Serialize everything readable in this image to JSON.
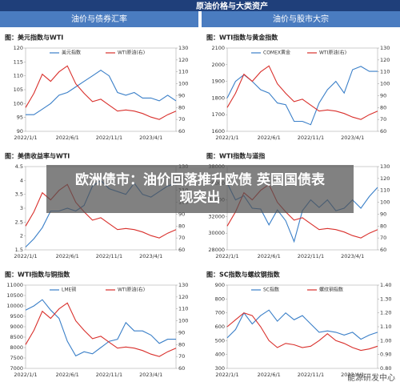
{
  "header": {
    "title": "原油价格与大类资产",
    "tabs": [
      "油价与债券汇率",
      "油价与股市大宗"
    ]
  },
  "overlay_title": "欧洲债市：油价回落推升欧债 英国国债表现突出",
  "watermark": "能源研发中心",
  "chart_data": [
    {
      "type": "line",
      "title": "图：美元指数与WTI",
      "categories": [
        "2022/1/1",
        null,
        null,
        null,
        null,
        "2022/6/1",
        null,
        null,
        null,
        null,
        "2022/11/1",
        null,
        null,
        null,
        null,
        "2023/4/1",
        null,
        null,
        null
      ],
      "series": [
        {
          "name": "美元指数",
          "color": "#3a7fc8",
          "values": [
            96,
            96,
            98,
            100,
            103,
            104,
            106,
            108,
            110,
            112,
            110,
            104,
            103,
            104,
            102,
            102,
            101,
            103,
            101
          ]
        },
        {
          "name": "WTI原油(右)",
          "color": "#d9302c",
          "axis": "y2",
          "values": [
            80,
            92,
            108,
            102,
            110,
            115,
            100,
            92,
            85,
            87,
            82,
            77,
            78,
            77,
            75,
            72,
            70,
            74,
            77
          ]
        }
      ],
      "ylim": [
        90,
        120
      ],
      "yticks": [
        90,
        95,
        100,
        105,
        110,
        115,
        120
      ],
      "y2lim": [
        60,
        130
      ],
      "y2ticks": [
        60,
        70,
        80,
        90,
        100,
        110,
        120,
        130
      ]
    },
    {
      "type": "line",
      "title": "图：WTI指数与黄金指数",
      "categories": [
        "2022/1/1",
        null,
        null,
        null,
        null,
        "2022/6/1",
        null,
        null,
        null,
        null,
        "2022/11/1",
        null,
        null,
        null,
        null,
        "2023/4/1",
        null,
        null,
        null
      ],
      "series": [
        {
          "name": "COMEX黄金",
          "color": "#3a7fc8",
          "values": [
            1800,
            1900,
            1940,
            1900,
            1850,
            1830,
            1770,
            1760,
            1660,
            1660,
            1640,
            1770,
            1850,
            1900,
            1830,
            1970,
            1990,
            1960,
            1960
          ]
        },
        {
          "name": "WTI原油(右)",
          "color": "#d9302c",
          "axis": "y2",
          "values": [
            80,
            92,
            108,
            102,
            110,
            115,
            100,
            92,
            85,
            87,
            82,
            77,
            78,
            77,
            75,
            72,
            70,
            74,
            77
          ]
        }
      ],
      "ylim": [
        1600,
        2100
      ],
      "yticks": [
        1600,
        1700,
        1800,
        1900,
        2000,
        2100
      ],
      "y2lim": [
        60,
        130
      ],
      "y2ticks": [
        60,
        70,
        80,
        90,
        100,
        110,
        120,
        130
      ]
    },
    {
      "type": "line",
      "title": "图：美债收益率与WTI",
      "categories": [
        "2022/1/1",
        null,
        null,
        null,
        null,
        "2022/6/1",
        null,
        null,
        null,
        null,
        "2022/11/1",
        null,
        null,
        null,
        null,
        "2023/4/1",
        null,
        null,
        null
      ],
      "series": [
        {
          "color": "#3a7fc8",
          "values": [
            1.6,
            1.9,
            2.3,
            2.9,
            2.9,
            3.0,
            2.9,
            3.1,
            3.8,
            4.0,
            3.7,
            3.6,
            3.5,
            3.9,
            3.5,
            3.4,
            3.6,
            3.8,
            3.9
          ]
        },
        {
          "color": "#d9302c",
          "axis": "y2",
          "values": [
            80,
            92,
            108,
            102,
            110,
            115,
            100,
            92,
            85,
            87,
            82,
            77,
            78,
            77,
            75,
            72,
            70,
            74,
            77
          ]
        }
      ],
      "ylim": [
        1.5,
        4.5
      ],
      "yticks": [
        1.5,
        2,
        2.5,
        3,
        3.5,
        4,
        4.5
      ],
      "y2lim": [
        60,
        130
      ],
      "y2ticks": [
        60,
        70,
        80,
        90,
        100,
        110,
        120,
        130
      ]
    },
    {
      "type": "line",
      "title": "图：WTI指数与道指",
      "categories": [
        "2022/1/1",
        null,
        null,
        null,
        null,
        "2022/6/1",
        null,
        null,
        null,
        null,
        "2022/11/1",
        null,
        null,
        null,
        null,
        "2023/4/1",
        null,
        null,
        null
      ],
      "series": [
        {
          "color": "#3a7fc8",
          "values": [
            36000,
            34000,
            34500,
            33000,
            32900,
            31000,
            32800,
            31500,
            29000,
            32700,
            34000,
            33100,
            34000,
            32700,
            33000,
            34000,
            33000,
            34400,
            35500
          ]
        },
        {
          "color": "#d9302c",
          "axis": "y2",
          "values": [
            80,
            92,
            108,
            102,
            110,
            115,
            100,
            92,
            85,
            87,
            82,
            77,
            78,
            77,
            75,
            72,
            70,
            74,
            77
          ]
        }
      ],
      "ylim": [
        28000,
        38000
      ],
      "yticks": [
        28000,
        30000,
        32000,
        34000,
        36000,
        38000
      ],
      "y2lim": [
        60,
        130
      ],
      "y2ticks": [
        60,
        70,
        80,
        90,
        100,
        110,
        120,
        130
      ]
    },
    {
      "type": "line",
      "title": "图：WTI指数与铜指数",
      "categories": [
        "2022/1/1",
        null,
        null,
        null,
        null,
        "2022/6/1",
        null,
        null,
        null,
        null,
        "2022/11/1",
        null,
        null,
        null,
        null,
        "2023/4/1",
        null,
        null,
        null
      ],
      "series": [
        {
          "name": "LME铜",
          "color": "#3a7fc8",
          "values": [
            9800,
            10000,
            10300,
            9800,
            9400,
            8300,
            7600,
            7800,
            7700,
            8000,
            8300,
            8400,
            9200,
            8800,
            8800,
            8600,
            8200,
            8400,
            8400
          ]
        },
        {
          "name": "WTI原油(右)",
          "color": "#d9302c",
          "axis": "y2",
          "values": [
            80,
            92,
            108,
            102,
            110,
            115,
            100,
            92,
            85,
            87,
            82,
            77,
            78,
            77,
            75,
            72,
            70,
            74,
            77
          ]
        }
      ],
      "ylim": [
        7000,
        11000
      ],
      "yticks": [
        7000,
        7500,
        8000,
        8500,
        9000,
        9500,
        10000,
        10500,
        11000
      ],
      "y2lim": [
        60,
        130
      ],
      "y2ticks": [
        60,
        70,
        80,
        90,
        100,
        110,
        120,
        130
      ]
    },
    {
      "type": "line",
      "title": "图：SC指数与螺纹钢指数",
      "categories": [
        "2022/1/1",
        null,
        null,
        null,
        null,
        "2022/6/1",
        null,
        null,
        null,
        null,
        "2022/11/1",
        null,
        null,
        null,
        null,
        "2023/4/1",
        null,
        null,
        null
      ],
      "series": [
        {
          "name": "SC指数",
          "color": "#3a7fc8",
          "values": [
            520,
            580,
            700,
            620,
            680,
            720,
            640,
            700,
            650,
            680,
            620,
            560,
            570,
            560,
            540,
            560,
            510,
            540,
            560
          ]
        },
        {
          "name": "螺纹钢指数",
          "color": "#d9302c",
          "axis": "y2",
          "values": [
            1.1,
            1.15,
            1.2,
            1.18,
            1.1,
            1.0,
            0.95,
            0.98,
            0.97,
            0.95,
            0.96,
            1.0,
            1.05,
            1.0,
            0.98,
            0.95,
            0.93,
            0.94,
            0.96
          ]
        }
      ],
      "ylim": [
        300,
        900
      ],
      "yticks": [
        300,
        400,
        500,
        600,
        700,
        800,
        900
      ],
      "y2lim": [
        0.8,
        1.4
      ],
      "y2ticks": [
        {
          "value": 0.8,
          "label": "0.80"
        },
        {
          "value": 0.9,
          "label": "0.90"
        },
        {
          "value": 1.0,
          "label": "1.00"
        },
        {
          "value": 1.1,
          "label": "1.10"
        },
        {
          "value": 1.2,
          "label": "1.20"
        },
        {
          "value": 1.3,
          "label": "1.30"
        },
        {
          "value": 1.4,
          "label": "1.40"
        }
      ]
    }
  ]
}
